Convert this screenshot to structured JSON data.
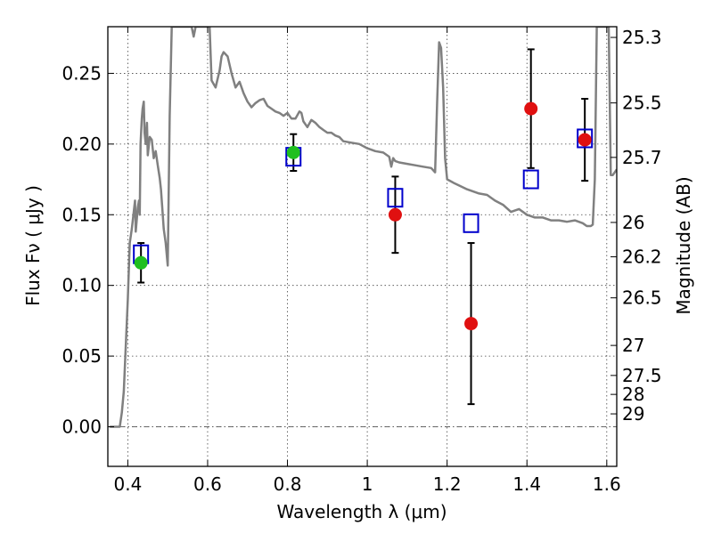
{
  "chart_data": {
    "type": "scatter",
    "xlabel": "Wavelength  λ (μm)",
    "ylabel": "Flux  Fν  ( μJy )",
    "y2label": "Magnitude (AB)",
    "xlim": [
      0.35,
      1.625
    ],
    "ylim": [
      -0.028,
      0.283
    ],
    "grid": true,
    "x_ticks": [
      0.4,
      0.6,
      0.8,
      1.0,
      1.2,
      1.4,
      1.6
    ],
    "x_tick_labels": [
      "0.4",
      "0.6",
      "0.8",
      "1",
      "1.2",
      "1.4",
      "1.6"
    ],
    "y_ticks": [
      0.0,
      0.05,
      0.1,
      0.15,
      0.2,
      0.25
    ],
    "y_tick_labels": [
      "0.00",
      "0.05",
      "0.10",
      "0.15",
      "0.20",
      "0.25"
    ],
    "mag_ticks": [
      {
        "mag": 25.3,
        "label": "25.3"
      },
      {
        "mag": 25.5,
        "label": "25.5"
      },
      {
        "mag": 25.7,
        "label": "25.7"
      },
      {
        "mag": 26.0,
        "label": "26"
      },
      {
        "mag": 26.2,
        "label": "26.2"
      },
      {
        "mag": 26.5,
        "label": "26.5"
      },
      {
        "mag": 27.0,
        "label": "27"
      },
      {
        "mag": 27.5,
        "label": "27.5"
      },
      {
        "mag": 28.0,
        "label": "28"
      },
      {
        "mag": 29.0,
        "label": "29"
      }
    ],
    "colors": {
      "model": "#808080",
      "model_photometry": "#0000cc",
      "detection_green": "#1fbf1f",
      "detection_red": "#e01010",
      "errorbar": "#000000",
      "grid": "#444444"
    },
    "series": [
      {
        "kind": "model_sed",
        "x": [
          0.355,
          0.38,
          0.385,
          0.39,
          0.4,
          0.405,
          0.41,
          0.418,
          0.42,
          0.425,
          0.428,
          0.43,
          0.432,
          0.435,
          0.437,
          0.44,
          0.442,
          0.445,
          0.448,
          0.45,
          0.455,
          0.46,
          0.465,
          0.47,
          0.475,
          0.48,
          0.483,
          0.487,
          0.49,
          0.495,
          0.5,
          0.505,
          0.51,
          0.515,
          0.52,
          0.525,
          0.53,
          0.54,
          0.55,
          0.56,
          0.565,
          0.57,
          0.58,
          0.585,
          0.59,
          0.595,
          0.6,
          0.605,
          0.61,
          0.62,
          0.63,
          0.635,
          0.64,
          0.65,
          0.66,
          0.67,
          0.68,
          0.69,
          0.7,
          0.71,
          0.72,
          0.73,
          0.74,
          0.75,
          0.76,
          0.77,
          0.78,
          0.79,
          0.8,
          0.81,
          0.82,
          0.83,
          0.835,
          0.84,
          0.85,
          0.86,
          0.87,
          0.88,
          0.89,
          0.9,
          0.91,
          0.92,
          0.93,
          0.94,
          0.96,
          0.98,
          1.0,
          1.02,
          1.04,
          1.055,
          1.06,
          1.065,
          1.07,
          1.08,
          1.1,
          1.12,
          1.14,
          1.16,
          1.17,
          1.175,
          1.18,
          1.185,
          1.19,
          1.195,
          1.2,
          1.22,
          1.25,
          1.28,
          1.3,
          1.32,
          1.34,
          1.36,
          1.38,
          1.4,
          1.42,
          1.44,
          1.46,
          1.48,
          1.5,
          1.52,
          1.54,
          1.55,
          1.56,
          1.565,
          1.57,
          1.575,
          1.58,
          1.585,
          1.59,
          1.595,
          1.6,
          1.605,
          1.61,
          1.615,
          1.625
        ],
        "y": [
          0.0,
          0.0,
          0.01,
          0.025,
          0.09,
          0.13,
          0.14,
          0.16,
          0.138,
          0.155,
          0.16,
          0.15,
          0.2,
          0.218,
          0.225,
          0.23,
          0.208,
          0.2,
          0.215,
          0.192,
          0.205,
          0.203,
          0.19,
          0.195,
          0.185,
          0.176,
          0.168,
          0.152,
          0.14,
          0.13,
          0.114,
          0.22,
          0.283,
          0.283,
          0.283,
          0.283,
          0.283,
          0.283,
          0.283,
          0.283,
          0.276,
          0.283,
          0.283,
          0.283,
          0.283,
          0.283,
          0.283,
          0.283,
          0.245,
          0.24,
          0.252,
          0.262,
          0.265,
          0.262,
          0.25,
          0.24,
          0.244,
          0.236,
          0.23,
          0.226,
          0.229,
          0.231,
          0.232,
          0.227,
          0.225,
          0.223,
          0.222,
          0.22,
          0.222,
          0.218,
          0.218,
          0.223,
          0.222,
          0.216,
          0.212,
          0.217,
          0.215,
          0.212,
          0.21,
          0.208,
          0.208,
          0.206,
          0.205,
          0.202,
          0.201,
          0.2,
          0.197,
          0.195,
          0.194,
          0.191,
          0.184,
          0.19,
          0.188,
          0.187,
          0.186,
          0.185,
          0.184,
          0.183,
          0.18,
          0.23,
          0.272,
          0.268,
          0.24,
          0.19,
          0.175,
          0.172,
          0.168,
          0.165,
          0.164,
          0.16,
          0.157,
          0.152,
          0.154,
          0.15,
          0.148,
          0.148,
          0.146,
          0.146,
          0.145,
          0.146,
          0.144,
          0.142,
          0.142,
          0.143,
          0.175,
          0.283,
          0.283,
          0.283,
          0.283,
          0.283,
          0.283,
          0.283,
          0.178,
          0.178,
          0.182
        ]
      },
      {
        "kind": "model_photometry",
        "marker": "open-square",
        "x": [
          0.433,
          0.815,
          1.07,
          1.26,
          1.41,
          1.545
        ],
        "y": [
          0.122,
          0.191,
          0.162,
          0.144,
          0.175,
          0.204
        ]
      },
      {
        "kind": "detections_green",
        "marker": "filled-circle",
        "x": [
          0.433,
          0.815
        ],
        "y": [
          0.116,
          0.194
        ],
        "yerr": [
          0.014,
          0.013
        ]
      },
      {
        "kind": "detections_red",
        "marker": "filled-circle",
        "x": [
          1.07,
          1.26,
          1.41,
          1.545
        ],
        "y": [
          0.15,
          0.073,
          0.225,
          0.203
        ],
        "yerr": [
          0.027,
          0.057,
          0.042,
          0.029
        ]
      }
    ]
  }
}
